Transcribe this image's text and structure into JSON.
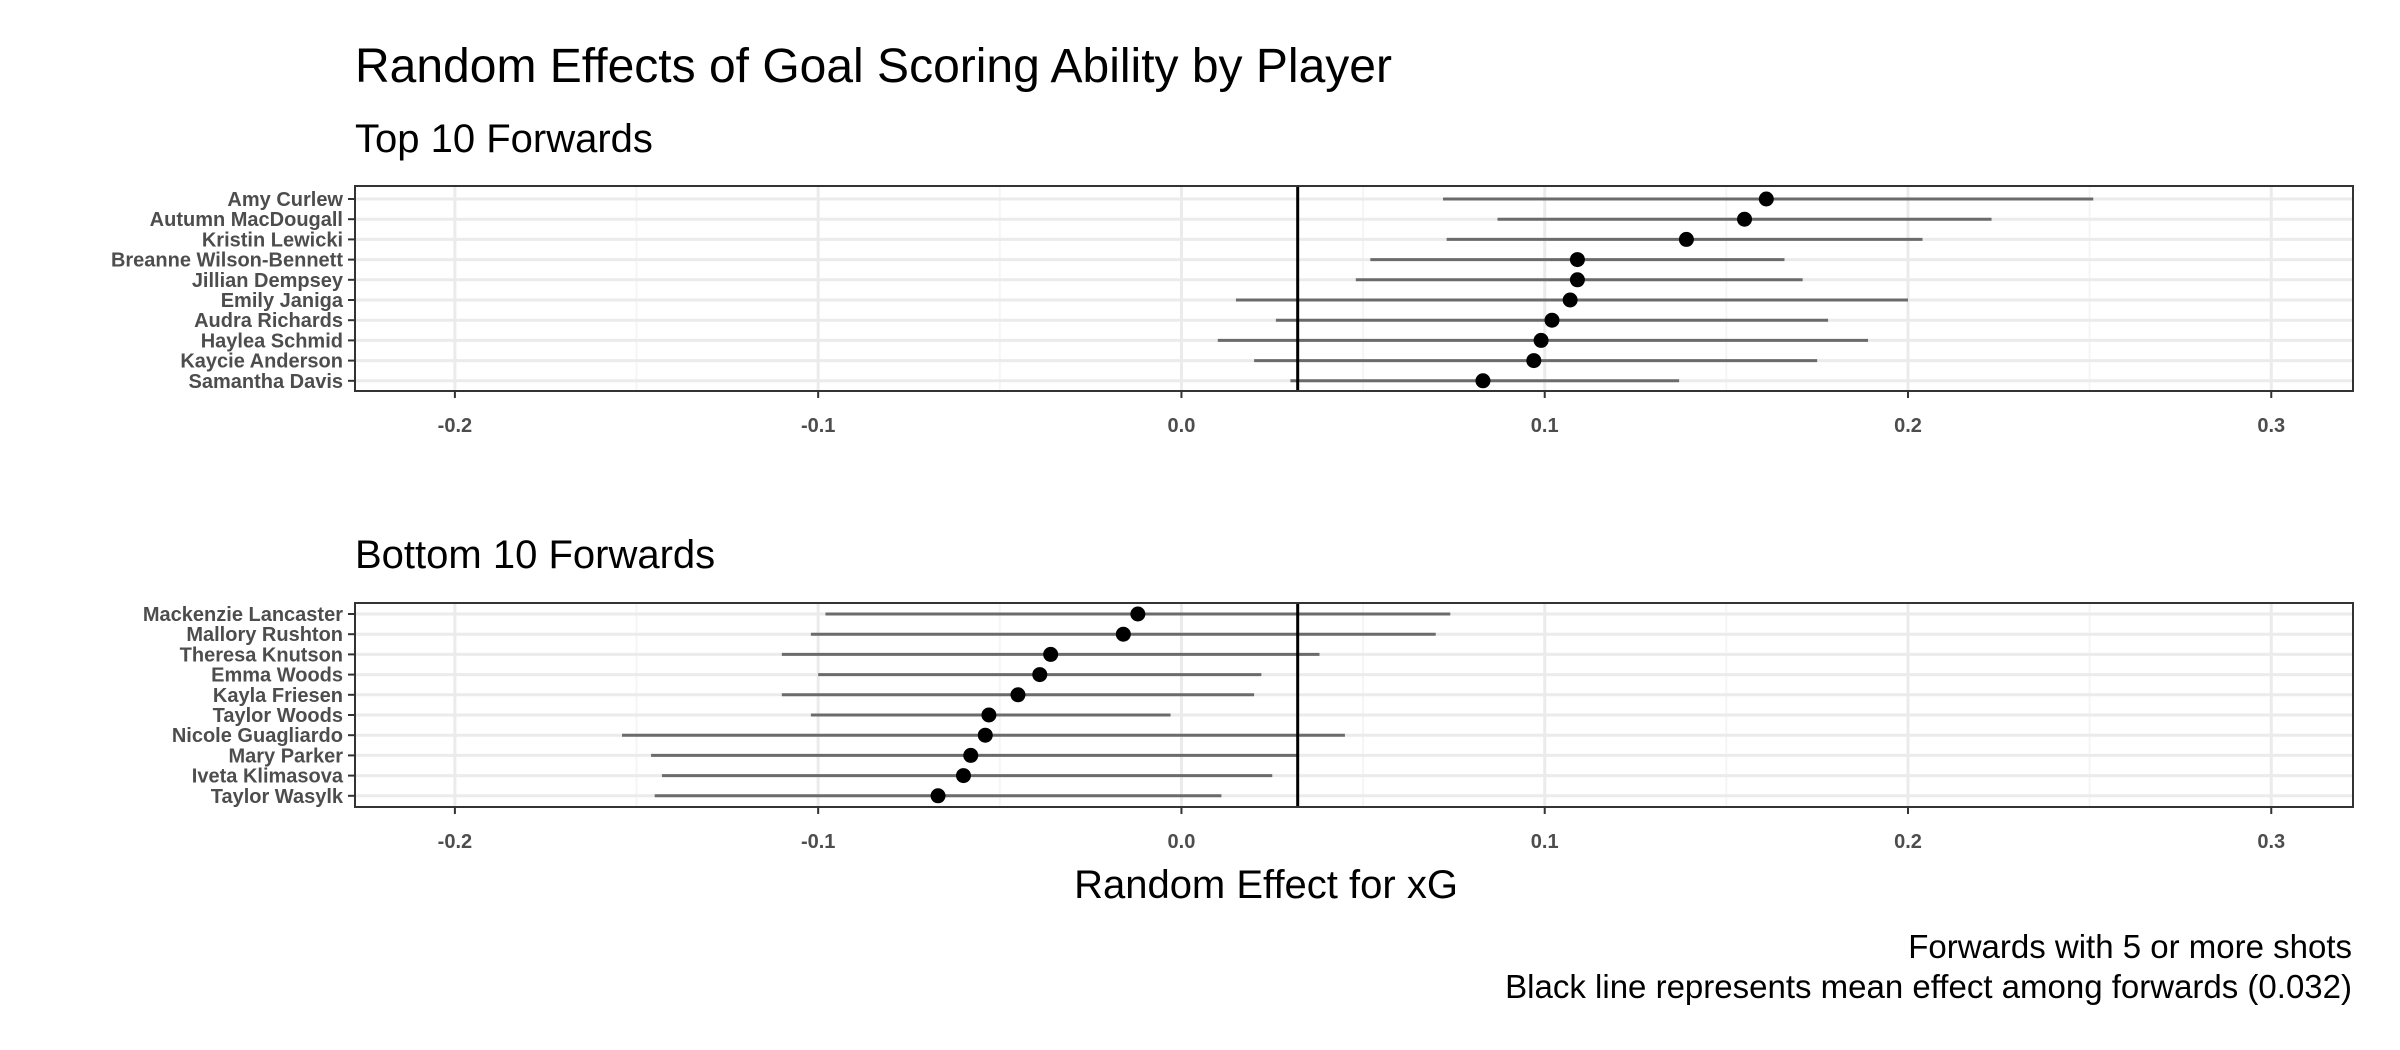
{
  "chart_data": {
    "type": "forest",
    "title": "Random Effects of Goal Scoring Ability by Player",
    "xlabel": "Random Effect for xG",
    "caption": [
      "Forwards with 5 or more shots",
      "Black line represents mean effect among forwards (0.032)"
    ],
    "xlim": [
      -0.2275,
      0.3225
    ],
    "xticks": [
      -0.2,
      -0.1,
      0.0,
      0.1,
      0.2,
      0.3
    ],
    "xtick_labels": [
      "-0.2",
      "-0.1",
      "0.0",
      "0.1",
      "0.2",
      "0.3"
    ],
    "mean_line": 0.032,
    "grid": true,
    "panels": [
      {
        "subtitle": "Top 10 Forwards",
        "players": [
          {
            "name": "Amy Curlew",
            "estimate": 0.161,
            "lower": 0.072,
            "upper": 0.251
          },
          {
            "name": "Autumn MacDougall",
            "estimate": 0.155,
            "lower": 0.087,
            "upper": 0.223
          },
          {
            "name": "Kristin Lewicki",
            "estimate": 0.139,
            "lower": 0.073,
            "upper": 0.204
          },
          {
            "name": "Breanne Wilson-Bennett",
            "estimate": 0.109,
            "lower": 0.052,
            "upper": 0.166
          },
          {
            "name": "Jillian Dempsey",
            "estimate": 0.109,
            "lower": 0.048,
            "upper": 0.171
          },
          {
            "name": "Emily Janiga",
            "estimate": 0.107,
            "lower": 0.015,
            "upper": 0.2
          },
          {
            "name": "Audra Richards",
            "estimate": 0.102,
            "lower": 0.026,
            "upper": 0.178
          },
          {
            "name": "Haylea Schmid",
            "estimate": 0.099,
            "lower": 0.01,
            "upper": 0.189
          },
          {
            "name": "Kaycie Anderson",
            "estimate": 0.097,
            "lower": 0.02,
            "upper": 0.175
          },
          {
            "name": "Samantha Davis",
            "estimate": 0.083,
            "lower": 0.03,
            "upper": 0.137
          }
        ]
      },
      {
        "subtitle": "Bottom 10 Forwards",
        "players": [
          {
            "name": "Mackenzie Lancaster",
            "estimate": -0.012,
            "lower": -0.098,
            "upper": 0.074
          },
          {
            "name": "Mallory Rushton",
            "estimate": -0.016,
            "lower": -0.102,
            "upper": 0.07
          },
          {
            "name": "Theresa Knutson",
            "estimate": -0.036,
            "lower": -0.11,
            "upper": 0.038
          },
          {
            "name": "Emma Woods",
            "estimate": -0.039,
            "lower": -0.1,
            "upper": 0.022
          },
          {
            "name": "Kayla Friesen",
            "estimate": -0.045,
            "lower": -0.11,
            "upper": 0.02
          },
          {
            "name": "Taylor Woods",
            "estimate": -0.053,
            "lower": -0.102,
            "upper": -0.003
          },
          {
            "name": "Nicole Guagliardo",
            "estimate": -0.054,
            "lower": -0.154,
            "upper": 0.045
          },
          {
            "name": "Mary Parker",
            "estimate": -0.058,
            "lower": -0.146,
            "upper": 0.032
          },
          {
            "name": "Iveta Klimasova",
            "estimate": -0.06,
            "lower": -0.143,
            "upper": 0.025
          },
          {
            "name": "Taylor Wasylk",
            "estimate": -0.067,
            "lower": -0.145,
            "upper": 0.011
          }
        ]
      }
    ],
    "colors": {
      "point": "#000000",
      "interval": "#6b6b6b",
      "mean_line": "#000000",
      "grid_major": "#ebebeb",
      "grid_minor": "#f5f5f5",
      "border": "#333333",
      "tick_text": "#4d4d4d"
    }
  }
}
